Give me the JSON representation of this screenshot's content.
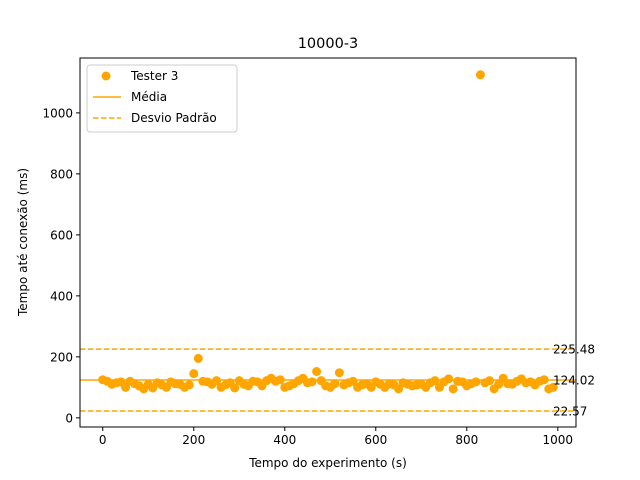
{
  "chart_data": {
    "type": "scatter",
    "title": "10000-3",
    "xlabel": "Tempo do experimento (s)",
    "ylabel": "Tempo até conexão (ms)",
    "xlim": [
      -50,
      1040
    ],
    "ylim": [
      -30,
      1180
    ],
    "x_ticks": [
      0,
      200,
      400,
      600,
      800,
      1000
    ],
    "y_ticks": [
      0,
      200,
      400,
      600,
      800,
      1000
    ],
    "grid": false,
    "legend_position": "upper-left",
    "color": "#ffa500",
    "series": [
      {
        "name": "Tester 3",
        "x": [
          0,
          10,
          20,
          30,
          40,
          50,
          60,
          70,
          80,
          90,
          100,
          110,
          120,
          130,
          140,
          150,
          160,
          170,
          180,
          190,
          200,
          210,
          220,
          230,
          240,
          250,
          260,
          270,
          280,
          290,
          300,
          310,
          320,
          330,
          340,
          350,
          360,
          370,
          380,
          390,
          400,
          410,
          420,
          430,
          440,
          450,
          460,
          470,
          480,
          490,
          500,
          510,
          520,
          530,
          540,
          550,
          560,
          570,
          580,
          590,
          600,
          610,
          620,
          630,
          640,
          650,
          660,
          670,
          680,
          690,
          700,
          710,
          720,
          730,
          740,
          750,
          760,
          770,
          780,
          790,
          800,
          810,
          820,
          830,
          840,
          850,
          860,
          870,
          880,
          890,
          900,
          910,
          920,
          930,
          940,
          950,
          960,
          970,
          980,
          990
        ],
        "y": [
          125,
          120,
          110,
          115,
          118,
          100,
          120,
          112,
          105,
          95,
          110,
          98,
          115,
          108,
          100,
          118,
          112,
          110,
          100,
          108,
          145,
          195,
          120,
          118,
          110,
          122,
          100,
          108,
          115,
          98,
          122,
          110,
          105,
          120,
          118,
          105,
          122,
          130,
          120,
          125,
          100,
          105,
          112,
          122,
          130,
          115,
          118,
          152,
          122,
          105,
          100,
          112,
          148,
          108,
          115,
          120,
          100,
          108,
          112,
          100,
          118,
          110,
          100,
          112,
          108,
          95,
          115,
          110,
          105,
          108,
          110,
          100,
          115,
          122,
          100,
          118,
          128,
          95,
          120,
          118,
          105,
          112,
          118,
          1125,
          115,
          122,
          95,
          110,
          130,
          112,
          110,
          120,
          128,
          115,
          118,
          108,
          120,
          125,
          95,
          100
        ]
      },
      {
        "name": "Média",
        "value": 124.02,
        "label": "124.02"
      },
      {
        "name": "Desvio Padrão",
        "upper": 225.48,
        "lower": 22.57,
        "upper_label": "225.48",
        "lower_label": "22.57"
      }
    ]
  }
}
